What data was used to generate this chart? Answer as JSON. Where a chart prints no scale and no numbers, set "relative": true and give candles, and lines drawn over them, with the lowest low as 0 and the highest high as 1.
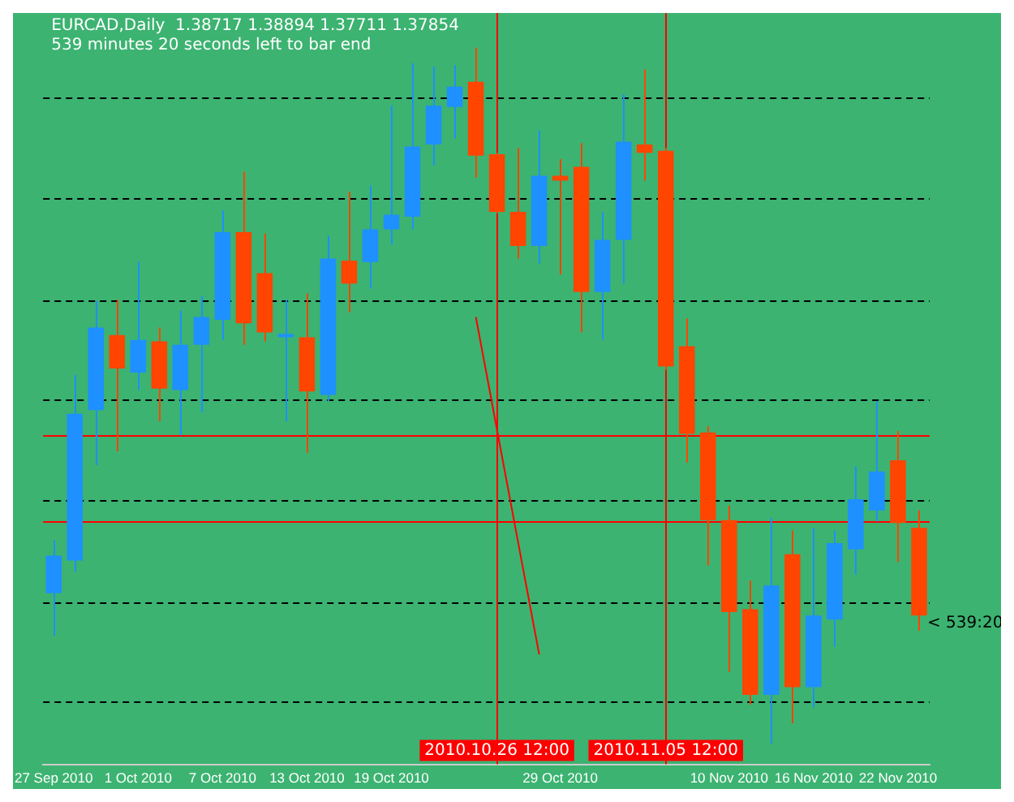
{
  "chart_data": {
    "type": "candlestick",
    "title": "EURCAD,Daily  1.38717 1.38894 1.37711 1.37854",
    "subtitle": "539 minutes 20 seconds left to bar end",
    "relative": true,
    "categories": [
      "27 Sep 2010",
      null,
      null,
      null,
      "1 Oct 2010",
      null,
      null,
      null,
      "7 Oct 2010",
      null,
      null,
      null,
      "13 Oct 2010",
      null,
      null,
      null,
      "19 Oct 2010",
      null,
      null,
      null,
      null,
      null,
      null,
      null,
      "29 Oct 2010",
      null,
      null,
      null,
      null,
      null,
      null,
      null,
      "10 Nov 2010",
      null,
      null,
      null,
      "16 Nov 2010",
      null,
      null,
      null,
      "22 Nov 2010",
      null
    ],
    "ohlc": [
      [
        0.216,
        0.292,
        0.155,
        0.27
      ],
      [
        0.263,
        0.53,
        0.247,
        0.474
      ],
      [
        0.479,
        0.636,
        0.4,
        0.598
      ],
      [
        0.587,
        0.638,
        0.42,
        0.539
      ],
      [
        0.533,
        0.692,
        0.508,
        0.58
      ],
      [
        0.578,
        0.598,
        0.463,
        0.51
      ],
      [
        0.508,
        0.622,
        0.443,
        0.573
      ],
      [
        0.573,
        0.643,
        0.476,
        0.613
      ],
      [
        0.609,
        0.766,
        0.58,
        0.735
      ],
      [
        0.735,
        0.822,
        0.573,
        0.604
      ],
      [
        0.676,
        0.733,
        0.578,
        0.591
      ],
      [
        0.584,
        0.638,
        0.463,
        0.587
      ],
      [
        0.584,
        0.647,
        0.418,
        0.506
      ],
      [
        0.501,
        0.73,
        0.492,
        0.697
      ],
      [
        0.694,
        0.793,
        0.62,
        0.661
      ],
      [
        0.692,
        0.802,
        0.654,
        0.739
      ],
      [
        0.739,
        0.917,
        0.717,
        0.76
      ],
      [
        0.757,
        0.978,
        0.739,
        0.858
      ],
      [
        0.861,
        0.973,
        0.831,
        0.917
      ],
      [
        0.915,
        0.975,
        0.87,
        0.944
      ],
      [
        0.951,
        1,
        0.813,
        0.845
      ],
      [
        0.847,
        0.849,
        0.762,
        0.764
      ],
      [
        0.764,
        0.856,
        0.697,
        0.715
      ],
      [
        0.715,
        0.881,
        0.69,
        0.816
      ],
      [
        0.816,
        0.84,
        0.674,
        0.809
      ],
      [
        0.829,
        0.863,
        0.591,
        0.649
      ],
      [
        0.649,
        0.764,
        0.58,
        0.724
      ],
      [
        0.724,
        0.933,
        0.661,
        0.865
      ],
      [
        0.861,
        0.969,
        0.809,
        0.849
      ],
      [
        0.852,
        0.856,
        0.537,
        0.542
      ],
      [
        0.571,
        0.611,
        0.404,
        0.445
      ],
      [
        0.447,
        0.456,
        0.256,
        0.321
      ],
      [
        0.321,
        0.342,
        0.103,
        0.189
      ],
      [
        0.193,
        0.234,
        0.056,
        0.07
      ],
      [
        0.07,
        0.324,
        0,
        0.227
      ],
      [
        0.272,
        0.306,
        0.029,
        0.081
      ],
      [
        0.081,
        0.31,
        0.052,
        0.184
      ],
      [
        0.178,
        0.306,
        0.139,
        0.288
      ],
      [
        0.279,
        0.398,
        0.243,
        0.351
      ],
      [
        0.335,
        0.492,
        0.319,
        0.391
      ],
      [
        0.407,
        0.449,
        0.261,
        0.317
      ],
      [
        0.31,
        0.335,
        0.162,
        0.184
      ]
    ],
    "colors": [
      "#1e90ff",
      "#1e90ff",
      "#1e90ff",
      "#ff4500",
      "#1e90ff",
      "#ff4500",
      "#1e90ff",
      "#1e90ff",
      "#1e90ff",
      "#ff4500",
      "#ff4500",
      "#1e90ff",
      "#ff4500",
      "#1e90ff",
      "#ff4500",
      "#1e90ff",
      "#1e90ff",
      "#1e90ff",
      "#1e90ff",
      "#1e90ff",
      "#ff4500",
      "#ff4500",
      "#ff4500",
      "#1e90ff",
      "#ff4500",
      "#ff4500",
      "#1e90ff",
      "#1e90ff",
      "#ff4500",
      "#ff4500",
      "#ff4500",
      "#ff4500",
      "#ff4500",
      "#ff4500",
      "#1e90ff",
      "#ff4500",
      "#1e90ff",
      "#1e90ff",
      "#1e90ff",
      "#1e90ff",
      "#ff4500",
      "#ff4500"
    ],
    "series": [
      {
        "type": "line",
        "values": [
          null,
          null,
          null,
          null,
          null,
          null,
          null,
          null,
          null,
          null,
          null,
          null,
          null,
          null,
          null,
          null,
          null,
          null,
          null,
          null,
          0.613,
          null,
          null,
          0.128,
          null,
          null,
          null,
          null,
          null,
          null,
          null,
          null,
          null,
          null,
          null,
          null,
          null,
          null,
          null,
          null,
          null,
          null
        ],
        "color": "#ff0000"
      }
    ],
    "ref_lines": [
      {
        "axis": "y",
        "value": 0.928,
        "color": "#000000",
        "line_style": "dashed"
      },
      {
        "axis": "y",
        "value": 0.784,
        "color": "#000000",
        "line_style": "dashed"
      },
      {
        "axis": "y",
        "value": 0.638,
        "color": "#000000",
        "line_style": "dashed"
      },
      {
        "axis": "y",
        "value": 0.494,
        "color": "#000000",
        "line_style": "dashed"
      },
      {
        "axis": "y",
        "value": 0.351,
        "color": "#000000",
        "line_style": "dashed"
      },
      {
        "axis": "y",
        "value": 0.204,
        "color": "#000000",
        "line_style": "dashed"
      },
      {
        "axis": "y",
        "value": 0.061,
        "color": "#000000",
        "line_style": "dashed"
      },
      {
        "axis": "y",
        "value": 0.443,
        "color": "#ff0000",
        "line_style": "solid"
      },
      {
        "axis": "y",
        "value": 0.319,
        "color": "#ff0000",
        "line_style": "solid"
      }
    ],
    "annotations": [
      "2010.10.26 12:00",
      "2010.11.05 12:00",
      "< 539:20"
    ]
  }
}
